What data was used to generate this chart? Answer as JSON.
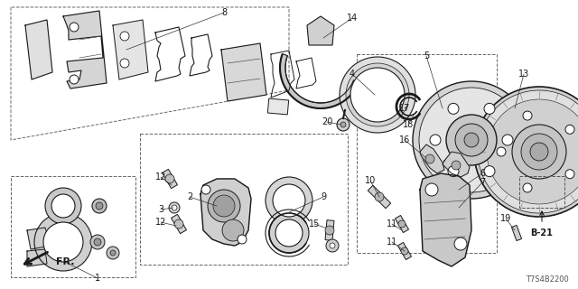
{
  "bg": "#ffffff",
  "line": "#1a1a1a",
  "gray_light": "#d8d8d8",
  "gray_mid": "#b0b0b0",
  "gray_dark": "#888888",
  "diagram_code": "T7S4B2200",
  "figsize": [
    6.4,
    3.2
  ],
  "dpi": 100
}
